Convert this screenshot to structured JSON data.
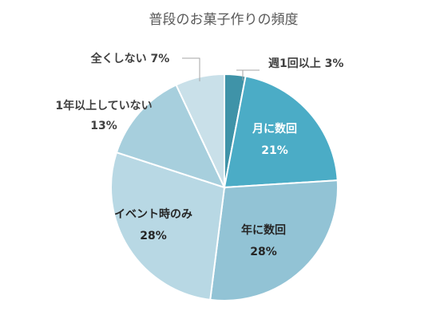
{
  "chart_data": {
    "type": "pie",
    "title": "普段のお菓子作りの頻度",
    "start": "top",
    "direction": "clockwise",
    "slices": [
      {
        "name": "週1回以上",
        "value": 3,
        "value_text": "3%",
        "color": "#3f93a8",
        "label_pos": "outside",
        "label_lines": [
          "週1回以上 3%"
        ]
      },
      {
        "name": "月に数回",
        "value": 21,
        "value_text": "21%",
        "color": "#4bacc6",
        "label_pos": "inside",
        "label_lines": [
          "月に数回",
          "21%"
        ]
      },
      {
        "name": "年に数回",
        "value": 28,
        "value_text": "28%",
        "color": "#92c3d5",
        "label_pos": "inside",
        "label_lines": [
          "年に数回",
          "28%"
        ]
      },
      {
        "name": "イベント時のみ",
        "value": 28,
        "value_text": "28%",
        "color": "#b8d8e4",
        "label_pos": "inside",
        "label_lines": [
          "イベント時のみ",
          "28%"
        ]
      },
      {
        "name": "1年以上していない",
        "value": 13,
        "value_text": "13%",
        "color": "#a7cfdd",
        "label_pos": "outside",
        "label_lines": [
          "1年以上していない",
          "13%"
        ]
      },
      {
        "name": "全くしない",
        "value": 7,
        "value_text": "7%",
        "color": "#c9e0e9",
        "label_pos": "outside",
        "label_lines": [
          "全くしない 7%"
        ]
      }
    ]
  }
}
